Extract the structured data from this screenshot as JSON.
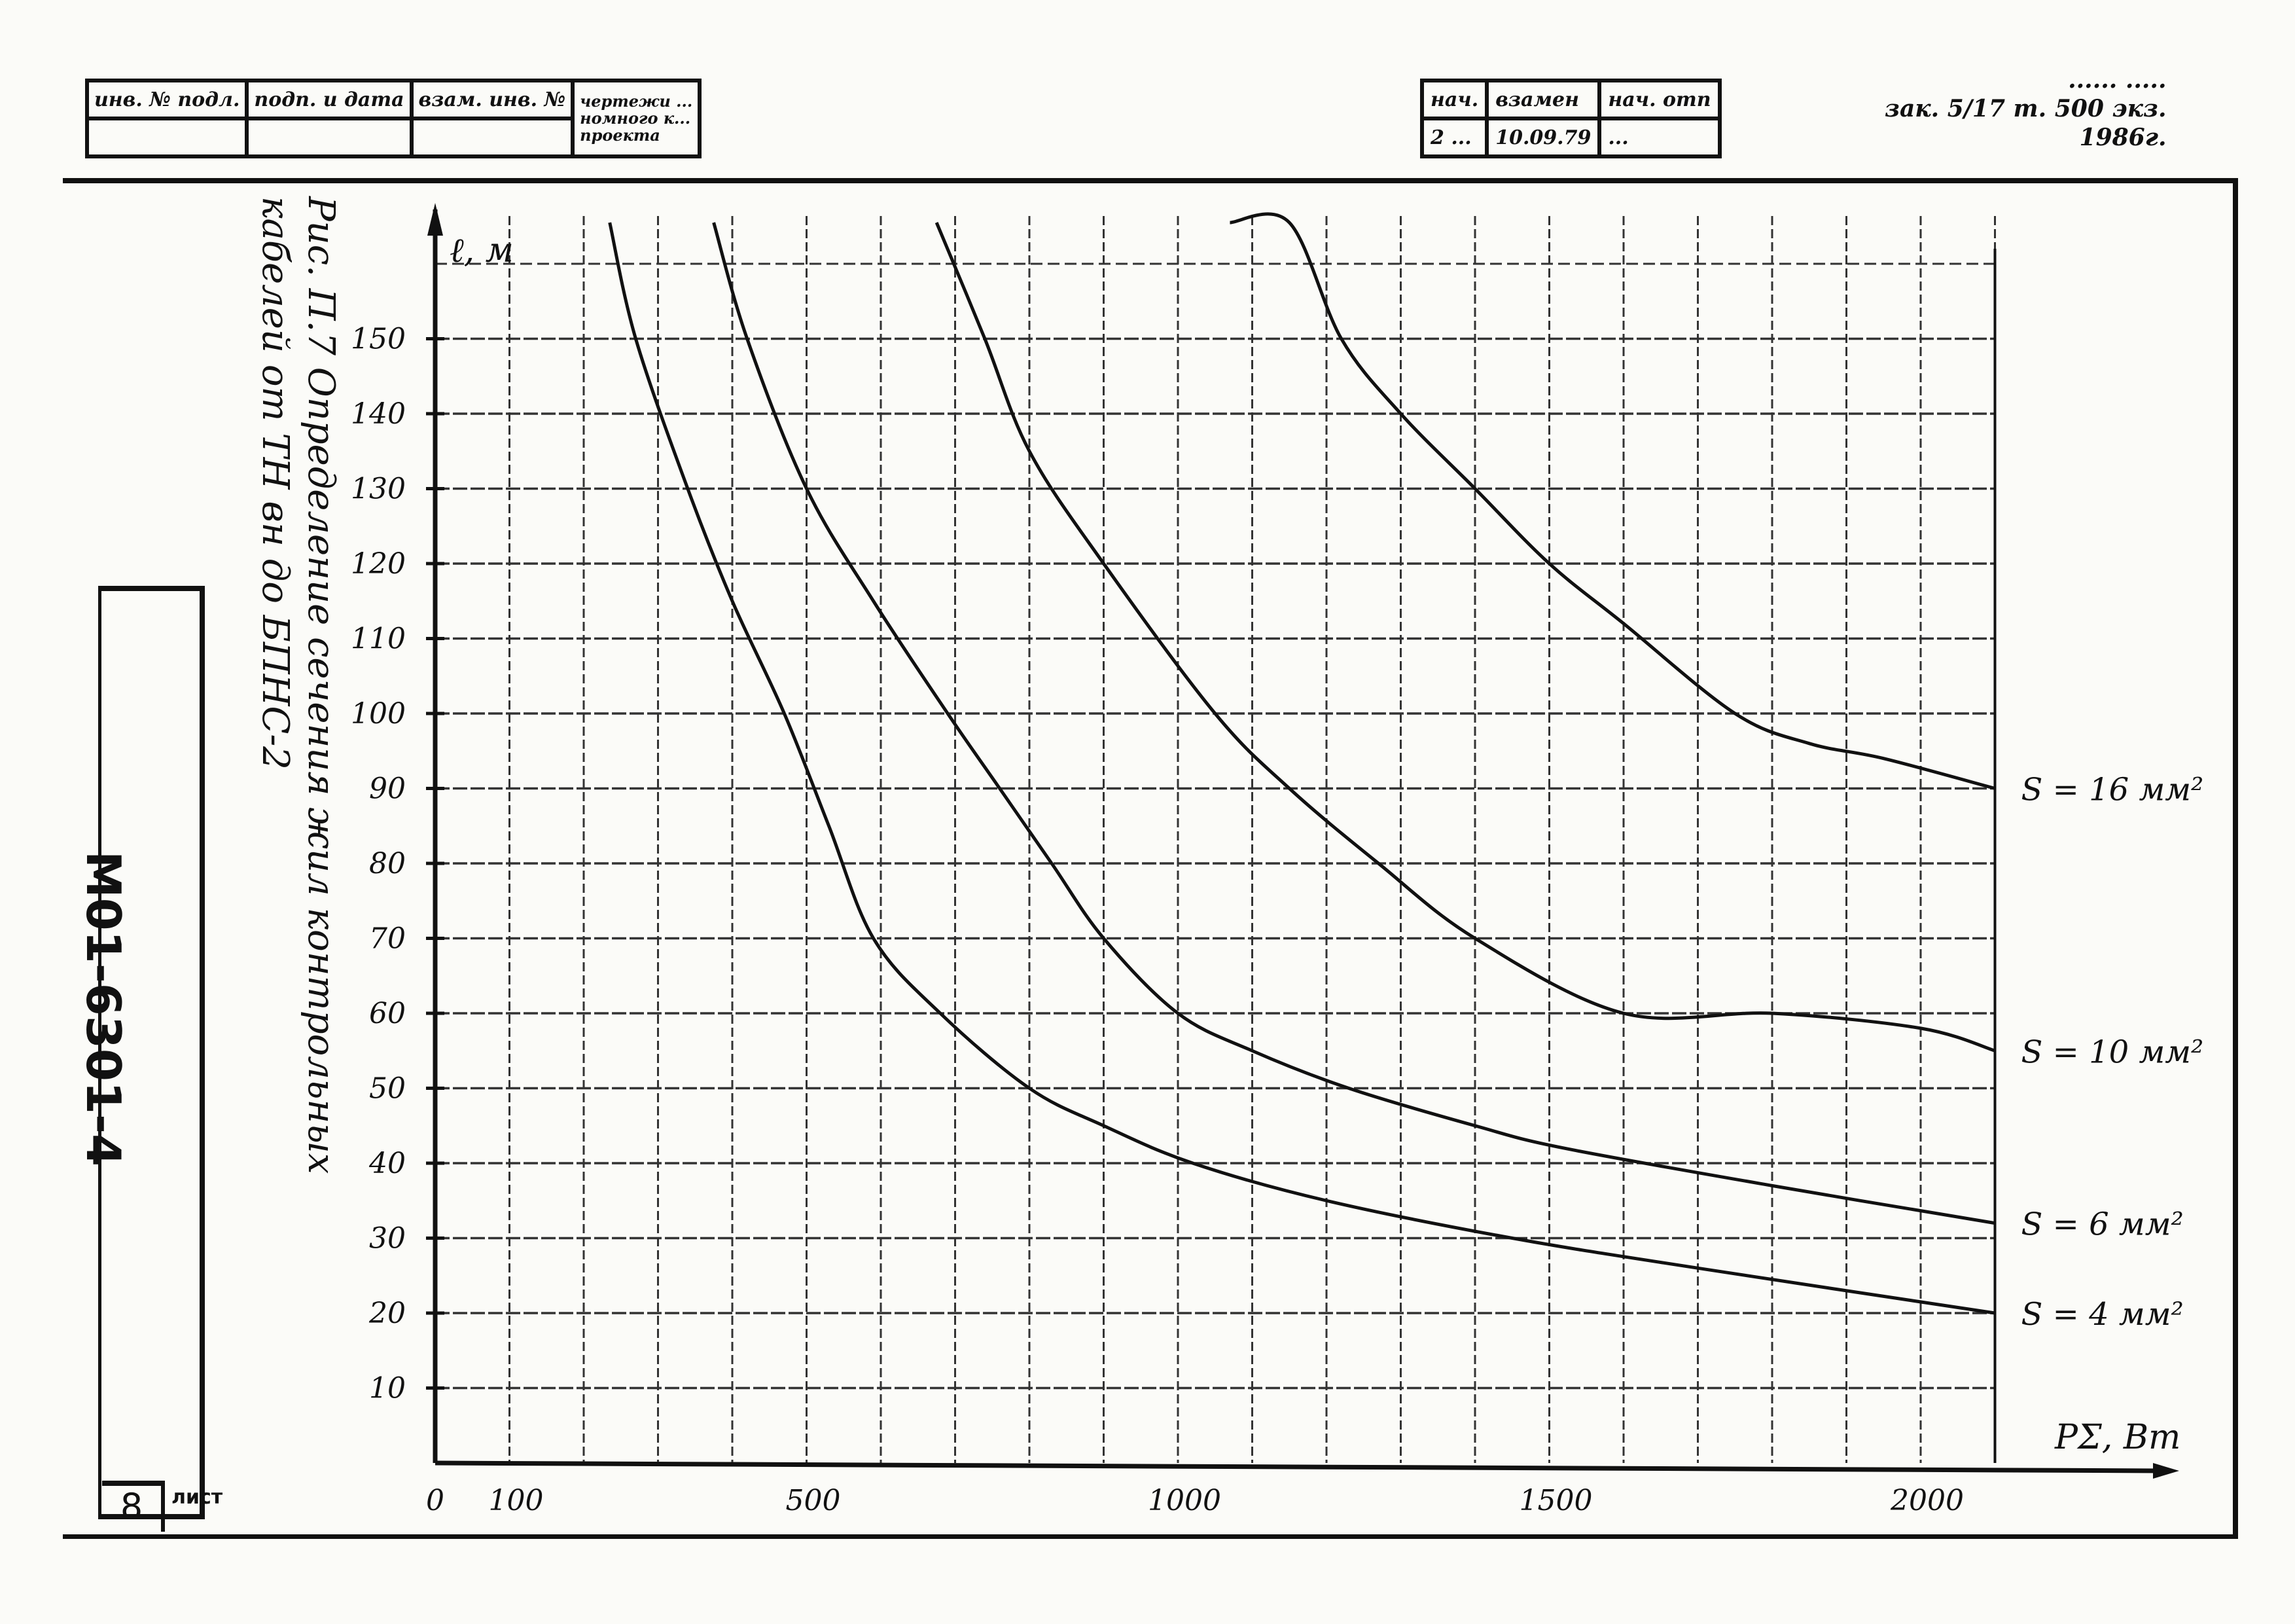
{
  "stamp": {
    "cells_left": [
      "инв. № подл.",
      "подп. и дата",
      "взам. инв. №",
      "чертежи ...\nномного к...\nпроекта"
    ],
    "cells_right_top": [
      "нач.",
      "взамен",
      "нач. отп"
    ],
    "cells_right_bottom": [
      "2 ...",
      "10.09.79",
      "..."
    ],
    "print_note_line1": "...... .....",
    "print_note_line2": "зак. 5/17 т. 500 экз.",
    "print_note_line3": "1986г."
  },
  "side": {
    "document_code": "М01-6301-4",
    "page_number": "8",
    "page_mark": "лист"
  },
  "caption": {
    "line1": "Рис. П.7  Определение  сечения  жил  контрольных",
    "line2": "кабелей  от  ТН вн  до  БПНС-2"
  },
  "chart_data": {
    "type": "line",
    "title": "Рис. П.7 Определение сечения жил контрольных кабелей от ТН вн до БПНС-2",
    "xlabel": "PΣ, Вт",
    "ylabel": "ℓ, м",
    "xlim": [
      0,
      2100
    ],
    "ylim": [
      0,
      160
    ],
    "grid": true,
    "x_tick_labels": [
      "0",
      "100",
      "500",
      "1000",
      "1500",
      "2000"
    ],
    "x_ticks": [
      0,
      100,
      500,
      1000,
      1500,
      2000
    ],
    "y_ticks": [
      10,
      20,
      30,
      40,
      50,
      60,
      70,
      80,
      90,
      100,
      110,
      120,
      130,
      140,
      150
    ],
    "y_tick_labels": [
      "10",
      "20",
      "30",
      "40",
      "50",
      "60",
      "70",
      "80",
      "90",
      "100",
      "110",
      "120",
      "130",
      "140",
      "150"
    ],
    "grid_x_step": 100,
    "grid_y_step": 10,
    "series": [
      {
        "name": "S = 4 мм²",
        "x": [
          235,
          270,
          340,
          400,
          470,
          530,
          590,
          680,
          800,
          900,
          1020,
          1200,
          1450,
          1700,
          2100
        ],
        "y": [
          170,
          150,
          130,
          115,
          100,
          85,
          70,
          60,
          50,
          45,
          40,
          35,
          30,
          26,
          20
        ]
      },
      {
        "name": "S = 6 мм²",
        "x": [
          375,
          420,
          500,
          590,
          690,
          760,
          830,
          900,
          1000,
          1100,
          1230,
          1400,
          1520,
          1800,
          2100
        ],
        "y": [
          170,
          150,
          130,
          115,
          100,
          90,
          80,
          70,
          60,
          55,
          50,
          45,
          42,
          37,
          32
        ]
      },
      {
        "name": "S = 10 мм²",
        "x": [
          675,
          740,
          800,
          900,
          1050,
          1150,
          1270,
          1400,
          1600,
          1800,
          2000,
          2100
        ],
        "y": [
          170,
          150,
          135,
          120,
          100,
          90,
          80,
          70,
          60,
          60,
          58,
          55
        ]
      },
      {
        "name": "S = 16 мм²",
        "x": [
          1070,
          1150,
          1220,
          1300,
          1400,
          1500,
          1600,
          1750,
          1850,
          1950,
          2100
        ],
        "y": [
          170,
          160,
          150,
          140,
          130,
          120,
          112,
          100,
          96,
          94,
          90
        ]
      }
    ],
    "legend": "inline labels at right end of each curve",
    "series_labels": [
      "S = 16 мм²",
      "S = 10 мм²",
      "S = 6 мм²",
      "S = 4 мм²"
    ]
  },
  "colors": {
    "ink": "#111111",
    "paper": "#fbfbf8",
    "grid": "#333333"
  }
}
